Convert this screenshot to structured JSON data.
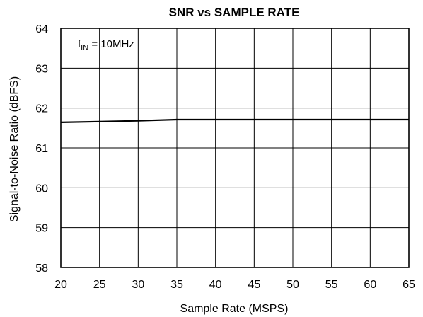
{
  "chart_data": {
    "type": "line",
    "title": "SNR vs SAMPLE RATE",
    "xlabel": "Sample Rate (MSPS)",
    "ylabel": "Signal-to-Noise Ratio (dBFS)",
    "xlim": [
      20,
      65
    ],
    "ylim": [
      58,
      64
    ],
    "xticks": [
      "20",
      "25",
      "30",
      "35",
      "40",
      "45",
      "50",
      "55",
      "60",
      "65"
    ],
    "yticks": [
      "58",
      "59",
      "60",
      "61",
      "62",
      "63",
      "64"
    ],
    "grid": true,
    "annotation": {
      "prefix": "f",
      "subscript": "IN",
      "suffix": " = 10MHz"
    },
    "series": [
      {
        "x": [
          20,
          25,
          30,
          35,
          40,
          45,
          50,
          55,
          60,
          65
        ],
        "y": [
          61.64,
          61.66,
          61.68,
          61.71,
          61.71,
          61.71,
          61.71,
          61.71,
          61.71,
          61.71
        ]
      }
    ]
  }
}
